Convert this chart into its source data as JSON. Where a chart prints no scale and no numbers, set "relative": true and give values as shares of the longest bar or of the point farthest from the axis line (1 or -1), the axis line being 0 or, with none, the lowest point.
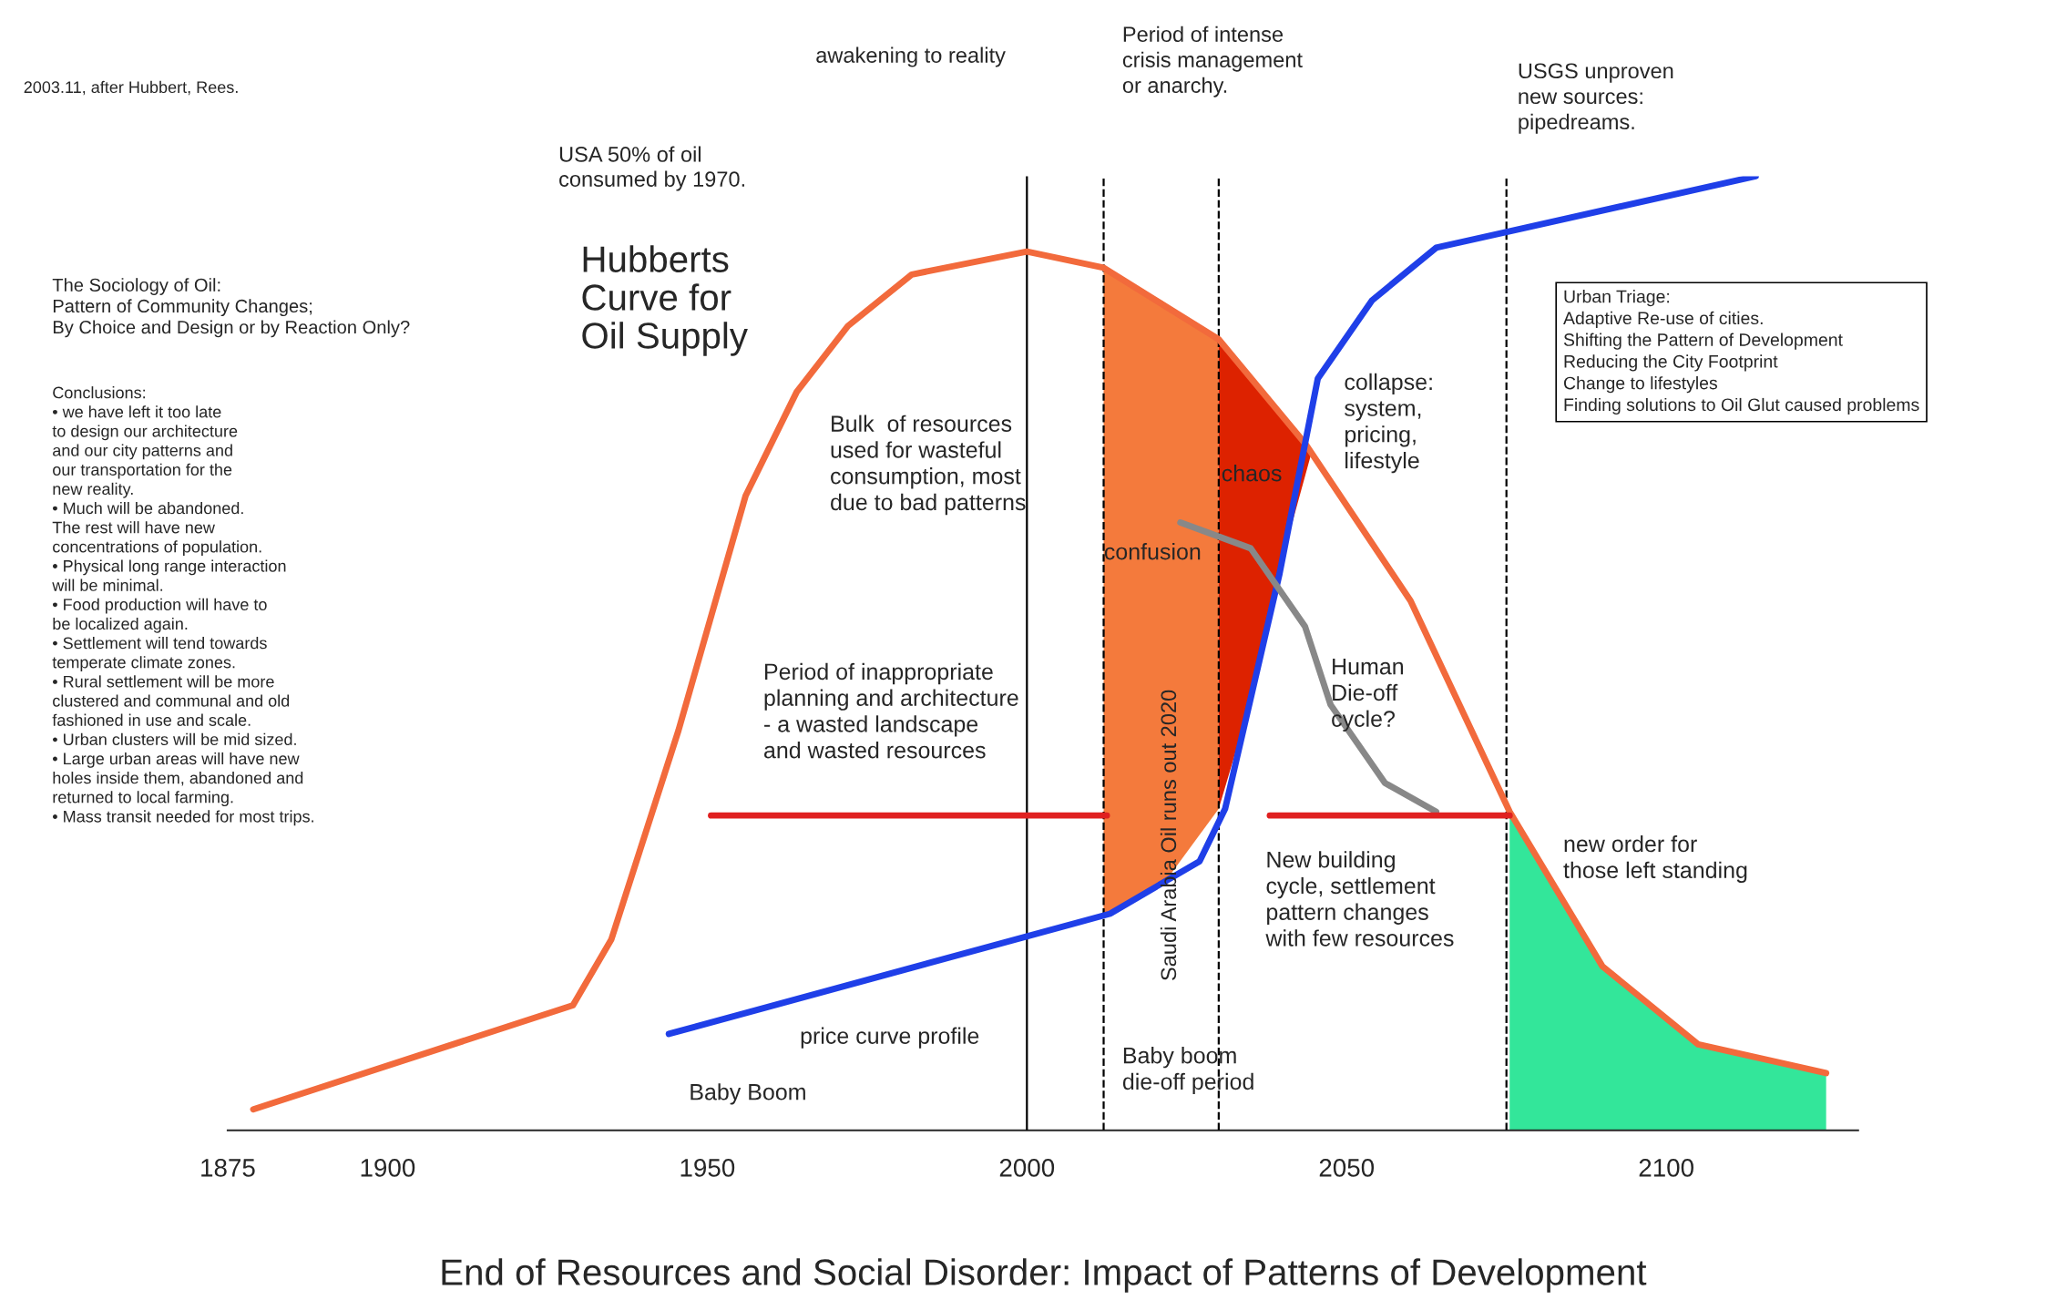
{
  "chart_data": {
    "type": "line",
    "relative": true,
    "title": "End of Resources and Social Disorder: Impact of Patterns of Development",
    "xlim": [
      1875,
      2130
    ],
    "xticks": [
      1875,
      1900,
      1950,
      2000,
      2050,
      2100
    ],
    "grid": false,
    "legend": false,
    "series": [
      {
        "type": "area",
        "color": "#f47a3c",
        "x": [
          2012,
          2021,
          2030,
          2030,
          2021,
          2012
        ],
        "values": [
          0.904,
          0.87,
          0.829,
          0.337,
          0.255,
          0.227
        ]
      },
      {
        "type": "area",
        "color": "#dd2200",
        "x": [
          2030,
          2035,
          2040,
          2044.5,
          2040,
          2035,
          2030
        ],
        "values": [
          0.829,
          0.79,
          0.75,
          0.71,
          0.6,
          0.45,
          0.337
        ]
      },
      {
        "type": "area",
        "color": "#33e69a",
        "x": [
          2075.5,
          2090,
          2105,
          2125,
          2125,
          2075.5
        ],
        "values": [
          0.334,
          0.172,
          0.09,
          0.06,
          0,
          0
        ]
      },
      {
        "color": "#f26a3c",
        "x": [
          1879,
          1929,
          1935,
          1945.5,
          1956,
          1964,
          1972,
          1982,
          2000,
          2012,
          2030,
          2043.5,
          2060,
          2075.5,
          2090,
          2105,
          2125
        ],
        "values": [
          0.022,
          0.131,
          0.2,
          0.419,
          0.665,
          0.774,
          0.843,
          0.897,
          0.921,
          0.904,
          0.829,
          0.72,
          0.555,
          0.334,
          0.172,
          0.09,
          0.06
        ]
      },
      {
        "color": "#1f3fe8",
        "x": [
          1944,
          2013,
          2027,
          2031,
          2039.5,
          2045.5,
          2054,
          2064,
          2114
        ],
        "values": [
          0.101,
          0.227,
          0.282,
          0.337,
          0.583,
          0.788,
          0.87,
          0.925,
          1
        ]
      },
      {
        "color": "#888888",
        "x": [
          2024,
          2035,
          2043.5,
          2047.5,
          2056,
          2064
        ],
        "values": [
          0.637,
          0.61,
          0.528,
          0.446,
          0.364,
          0.334
        ]
      },
      {
        "color": "#e02020",
        "x": [
          1950.6,
          2012.5
        ],
        "values": [
          0.33,
          0.33
        ]
      },
      {
        "color": "#e02020",
        "x": [
          2038,
          2075.5
        ],
        "values": [
          0.33,
          0.33
        ]
      }
    ],
    "ref_lines": [
      {
        "axis": "x",
        "value": 2000,
        "color": "#000000",
        "line_style": "solid"
      },
      {
        "axis": "x",
        "value": 2012,
        "color": "#000000",
        "line_style": "dashed"
      },
      {
        "axis": "x",
        "value": 2030,
        "color": "#000000",
        "line_style": "dashed"
      },
      {
        "axis": "x",
        "value": 2075,
        "color": "#000000",
        "line_style": "dashed"
      }
    ],
    "annotations": [
      "2003.11, after Hubbert, Rees.",
      "awakening to reality",
      "Period of intense\ncrisis management\nor anarchy.",
      "USGS unproven\nnew sources:\npipedreams.",
      "USA 50% of oil\nconsumed by 1970.",
      "Hubberts\nCurve for\nOil Supply",
      "The Sociology of Oil:\nPattern of Community Changes;\nBy Choice and Design or by Reaction Only?",
      "Conclusions:\n• we have left it too late\nto design our architecture\nand our city patterns and\nour transportation for the\nnew reality.\n• Much will be abandoned.\nThe rest will have new\nconcentrations of population.\n• Physical long range interaction\nwill be minimal.\n• Food production will have to\nbe localized again.\n• Settlement will tend towards\ntemperate climate zones.\n• Rural settlement will be more\nclustered and communal and old\nfashioned in use and scale.\n• Urban clusters will be mid sized.\n• Large urban areas will have new\nholes inside them, abandoned and\nreturned to local farming.\n• Mass transit needed for most trips.",
      "Bulk  of resources\nused for wasteful\nconsumption, most\ndue to bad patterns",
      "collapse:\nsystem,\npricing,\nlifestyle",
      "chaos",
      "confusion",
      "Urban Triage:\nAdaptive Re-use of cities.\nShifting the Pattern of Development\nReducing the City Footprint\nChange to lifestyles\nFinding solutions to Oil Glut caused problems",
      "Period of inappropriate\nplanning and architecture\n- a wasted landscape\nand wasted resources",
      "Saudi Arabia Oil runs out 2020",
      "Human\nDie-off\ncycle?",
      "New building\ncycle, settlement\npattern changes\nwith few resources",
      "new order for\nthose left standing",
      "price curve profile",
      "Baby Boom",
      "Baby boom\ndie-off period"
    ]
  }
}
